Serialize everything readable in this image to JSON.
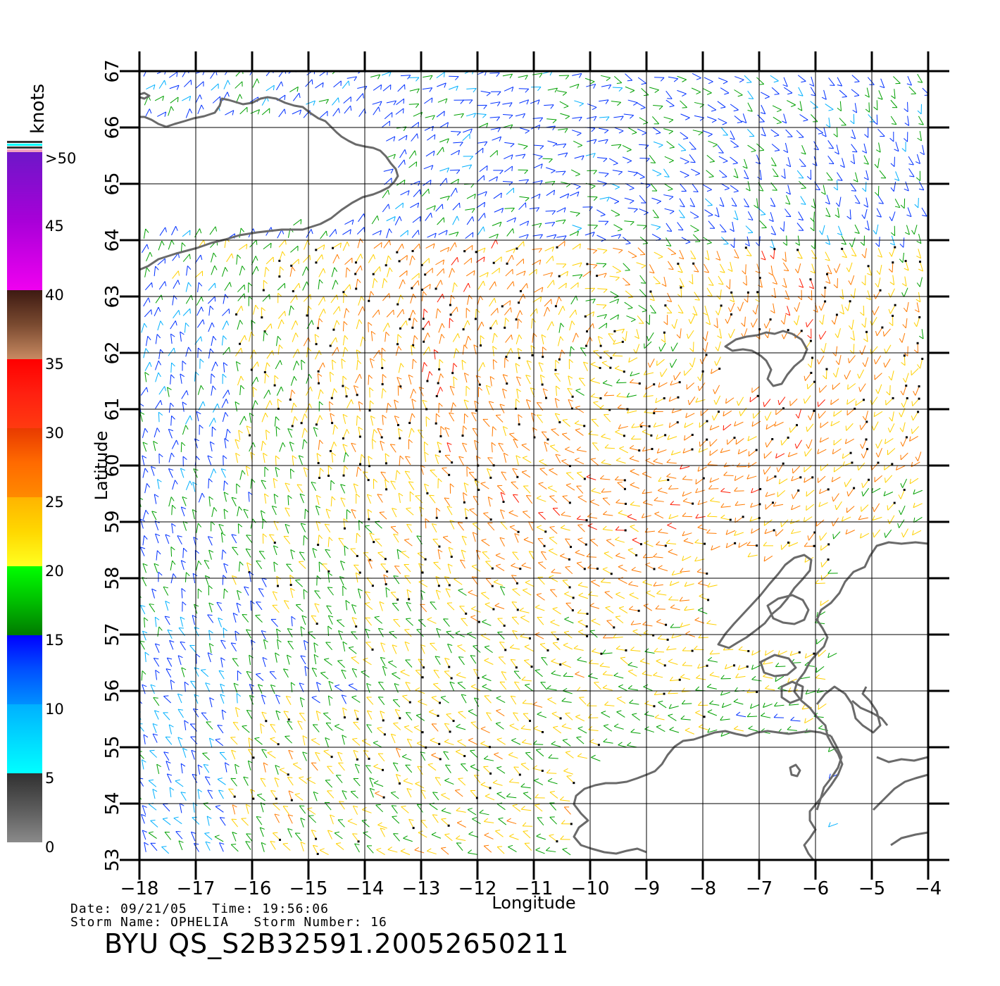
{
  "colorbar": {
    "unit": "knots",
    "labels": [
      ">50",
      "45",
      "40",
      "35",
      "30",
      "25",
      "20",
      "15",
      "10",
      "5",
      "0"
    ],
    "bands": [
      {
        "from": 50,
        "to": 40,
        "colors": [
          "#6d17c8",
          "#a800d8",
          "#f000f0"
        ]
      },
      {
        "from": 40,
        "to": 35,
        "colors": [
          "#3d1a12",
          "#7a4a30",
          "#c88a62"
        ]
      },
      {
        "from": 35,
        "to": 30,
        "colors": [
          "#ff0000",
          "#ff2010",
          "#ff3a10"
        ]
      },
      {
        "from": 30,
        "to": 25,
        "colors": [
          "#e83a00",
          "#ff6a00",
          "#ff8a00"
        ]
      },
      {
        "from": 25,
        "to": 20,
        "colors": [
          "#ffb400",
          "#ffd800",
          "#ffff20"
        ]
      },
      {
        "from": 20,
        "to": 15,
        "colors": [
          "#00ff00",
          "#00c000",
          "#007a00"
        ]
      },
      {
        "from": 15,
        "to": 10,
        "colors": [
          "#0000ff",
          "#0050ff",
          "#0090ff"
        ]
      },
      {
        "from": 10,
        "to": 5,
        "colors": [
          "#00b0ff",
          "#00d8ff",
          "#00ffff"
        ]
      },
      {
        "from": 5,
        "to": 0,
        "colors": [
          "#303030",
          "#5a5a5a",
          "#8a8a8a"
        ]
      }
    ]
  },
  "map": {
    "lon_range": [
      -18,
      -4
    ],
    "lat_range": [
      53,
      67
    ],
    "x_ticks": [
      "−18",
      "−17",
      "−16",
      "−15",
      "−14",
      "−13",
      "−12",
      "−11",
      "−10",
      "−9",
      "−8",
      "−7",
      "−6",
      "−5",
      "−4"
    ],
    "y_ticks": [
      "53",
      "54",
      "55",
      "56",
      "57",
      "58",
      "59",
      "60",
      "61",
      "62",
      "63",
      "64",
      "65",
      "66",
      "67"
    ],
    "xlabel": "Longitude",
    "ylabel": "Latitude",
    "grid": true,
    "land_color": "#6a6a6a",
    "wind_field": "wind barbs colored by speed, knots",
    "storm_center_region": {
      "lon": -9.5,
      "lat": 62.3
    }
  },
  "info": {
    "line1": "Date: 09/21/05   Time: 19:56:06",
    "line2": "Storm Name: OPHELIA   Storm Number: 16",
    "product_id": "BYU QS_S2B32591.20052650211"
  }
}
